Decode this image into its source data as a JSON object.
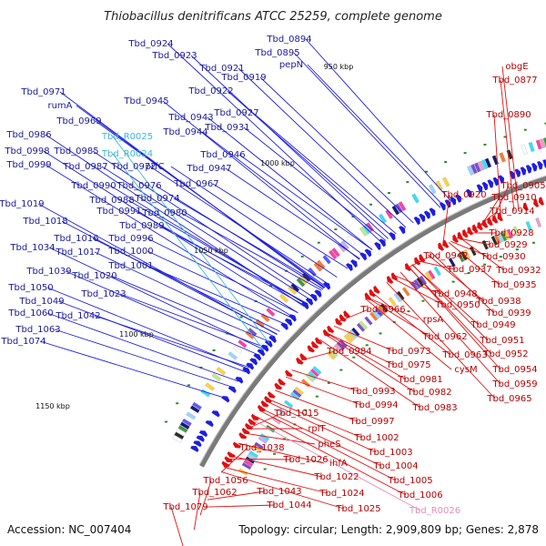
{
  "title": "Thiobacillus denitrificans ATCC 25259, complete genome",
  "footer": {
    "accession": "Accession: NC_007404",
    "summary": "Topology: circular; Length: 2,909,809 bp; Genes: 2,878"
  },
  "colors": {
    "backbone": "#7a7a7a",
    "forward": "#1e1ee0",
    "reverse": "#e01010",
    "feature": "#1a1a9c",
    "feature_reverse": "#b80000",
    "rna": "#3fb6d6",
    "rna_reverse": "#e38fb6",
    "tick": "#2d8a2d"
  },
  "scale_labels": [
    "950 kbp",
    "1000 kbp",
    "1050 kbp",
    "1100 kbp",
    "1150 kbp"
  ],
  "labels_forward": [
    "Tbd_0894",
    "Tbd_0895",
    "pepN",
    "Tbd_0924",
    "Tbd_0923",
    "Tbd_0921",
    "Tbd_0919",
    "Tbd_0922",
    "Tbd_0971",
    "rumA",
    "Tbd_0945",
    "Tbd_0969",
    "Tbd_0943",
    "Tbd_0927",
    "Tbd_0944",
    "Tbd_0931",
    "Tbd_0986",
    "Tbd_0998",
    "Tbd_0985",
    "Tbd_0999",
    "Tbd_0987",
    "Tbd_0972",
    "prfC",
    "Tbd_0946",
    "Tbd_0947",
    "Tbd_0990",
    "Tbd_0976",
    "Tbd_0967",
    "Tbd_0988",
    "Tbd_0974",
    "Tbd_0991",
    "Tbd_0980",
    "Tbd_1019",
    "Tbd_0989",
    "Tbd_1018",
    "Tbd_1016",
    "Tbd_0996",
    "Tbd_1034",
    "Tbd_1017",
    "Tbd_1000",
    "Tbd_1039",
    "Tbd_1020",
    "Tbd_1001",
    "Tbd_1050",
    "Tbd_1049",
    "Tbd_1023",
    "Tbd_1060",
    "Tbd_1042",
    "Tbd_1063",
    "Tbd_1074"
  ],
  "labels_forward_rna": [
    "Tbd_R0025",
    "Tbd_R0024"
  ],
  "labels_reverse": [
    "obgE",
    "Tbd_0877",
    "Tbd_0890",
    "Tbd_0905",
    "Tbd_0920",
    "Tbd_0910",
    "Tbd_0914",
    "Tbd_0928",
    "Tbd_0929",
    "Tbd_0930",
    "Tbd_0942",
    "Tbd_0937",
    "Tbd_0932",
    "Tbd_0935",
    "Tbd_0948",
    "Tbd_0938",
    "Tbd_0950",
    "Tbd_0939",
    "Tbd_0966",
    "rpsA",
    "Tbd_0949",
    "Tbd_0962",
    "Tbd_0951",
    "Tbd_0984",
    "Tbd_0973",
    "Tbd_0963",
    "Tbd_0952",
    "Tbd_0975",
    "cysM",
    "Tbd_0954",
    "Tbd_0981",
    "Tbd_0959",
    "Tbd_0993",
    "Tbd_0982",
    "Tbd_0965",
    "Tbd_0994",
    "Tbd_0983",
    "Tbd_1015",
    "Tbd_0997",
    "rplT",
    "Tbd_1002",
    "pheS",
    "Tbd_1038",
    "Tbd_1003",
    "Tbd_1026",
    "ihfA",
    "Tbd_1004",
    "Tbd_1022",
    "Tbd_1005",
    "Tbd_1056",
    "Tbd_1043",
    "Tbd_1024",
    "Tbd_1006",
    "Tbd_1062",
    "Tbd_1044",
    "Tbd_1025",
    "Tbd_1079"
  ],
  "labels_reverse_rna": [
    "Tbd_R0026"
  ]
}
